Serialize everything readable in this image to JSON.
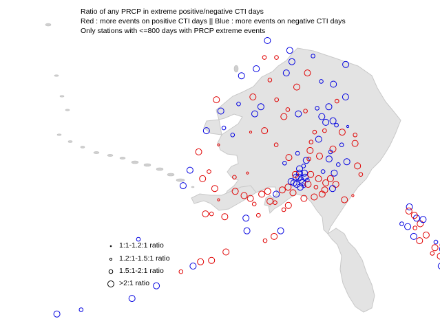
{
  "title": {
    "line1": "Ratio of any PRCP in extreme positive/negative CTI days",
    "line2": "Red : more events on positive CTI days || Blue : more events on negative CTI days",
    "line3": "Only stations with <=800 days with PRCP extreme events"
  },
  "colors": {
    "positive": "#e00000",
    "negative": "#0000e0",
    "land_fill": "#e3e3e3",
    "coast": "#c8c8c8"
  },
  "legend": {
    "items": [
      {
        "label": "1:1-1.2:1 ratio",
        "size_class": 1
      },
      {
        "label": "1.2:1-1.5:1 ratio",
        "size_class": 2
      },
      {
        "label": "1.5:1-2:1 ratio",
        "size_class": 3
      },
      {
        "label": ">2:1 ratio",
        "size_class": 4
      }
    ]
  },
  "stations": [
    {
      "lon": -141.0,
      "lat": 69.6,
      "color": "blue",
      "size_class": 4
    },
    {
      "lon": -147.3,
      "lat": 70.2,
      "color": "blue",
      "size_class": 3
    },
    {
      "lon": -156.8,
      "lat": 71.3,
      "color": "blue",
      "size_class": 4
    },
    {
      "lon": -152.0,
      "lat": 70.6,
      "color": "blue",
      "size_class": 4
    },
    {
      "lon": -154.6,
      "lat": 70.1,
      "color": "red",
      "size_class": 3
    },
    {
      "lon": -157.0,
      "lat": 70.1,
      "color": "red",
      "size_class": 3
    },
    {
      "lon": -158.3,
      "lat": 69.3,
      "color": "blue",
      "size_class": 4
    },
    {
      "lon": -160.9,
      "lat": 68.8,
      "color": "blue",
      "size_class": 4
    },
    {
      "lon": -151.5,
      "lat": 69.8,
      "color": "blue",
      "size_class": 4
    },
    {
      "lon": -148.5,
      "lat": 69.0,
      "color": "red",
      "size_class": 4
    },
    {
      "lon": -152.5,
      "lat": 69.0,
      "color": "blue",
      "size_class": 4
    },
    {
      "lon": -155.5,
      "lat": 68.5,
      "color": "red",
      "size_class": 3
    },
    {
      "lon": -150.5,
      "lat": 68.0,
      "color": "red",
      "size_class": 4
    },
    {
      "lon": -146.0,
      "lat": 68.4,
      "color": "blue",
      "size_class": 3
    },
    {
      "lon": -143.8,
      "lat": 68.2,
      "color": "blue",
      "size_class": 4
    },
    {
      "lon": -141.9,
      "lat": 67.3,
      "color": "blue",
      "size_class": 4
    },
    {
      "lon": -143.5,
      "lat": 67.0,
      "color": "red",
      "size_class": 3
    },
    {
      "lon": -145.0,
      "lat": 66.6,
      "color": "blue",
      "size_class": 4
    },
    {
      "lon": -147.0,
      "lat": 66.5,
      "color": "blue",
      "size_class": 3
    },
    {
      "lon": -149.0,
      "lat": 66.3,
      "color": "red",
      "size_class": 3
    },
    {
      "lon": -152.0,
      "lat": 66.4,
      "color": "red",
      "size_class": 3
    },
    {
      "lon": -154.0,
      "lat": 67.1,
      "color": "red",
      "size_class": 3
    },
    {
      "lon": -156.6,
      "lat": 66.6,
      "color": "blue",
      "size_class": 4
    },
    {
      "lon": -158.2,
      "lat": 67.3,
      "color": "red",
      "size_class": 4
    },
    {
      "lon": -160.5,
      "lat": 66.8,
      "color": "blue",
      "size_class": 3
    },
    {
      "lon": -163.3,
      "lat": 66.3,
      "color": "blue",
      "size_class": 4
    },
    {
      "lon": -164.5,
      "lat": 67.1,
      "color": "red",
      "size_class": 4
    },
    {
      "lon": -157.5,
      "lat": 66.1,
      "color": "blue",
      "size_class": 4
    },
    {
      "lon": -152.6,
      "lat": 65.9,
      "color": "red",
      "size_class": 4
    },
    {
      "lon": -150.2,
      "lat": 66.1,
      "color": "blue",
      "size_class": 4
    },
    {
      "lon": -146.3,
      "lat": 65.9,
      "color": "blue",
      "size_class": 4
    },
    {
      "lon": -145.7,
      "lat": 65.5,
      "color": "blue",
      "size_class": 4
    },
    {
      "lon": -144.5,
      "lat": 65.6,
      "color": "blue",
      "size_class": 4
    },
    {
      "lon": -144.0,
      "lat": 65.3,
      "color": "blue",
      "size_class": 3
    },
    {
      "lon": -142.2,
      "lat": 65.2,
      "color": "blue",
      "size_class": 2
    },
    {
      "lon": -143.2,
      "lat": 64.8,
      "color": "red",
      "size_class": 4
    },
    {
      "lon": -146.0,
      "lat": 64.9,
      "color": "red",
      "size_class": 3
    },
    {
      "lon": -147.6,
      "lat": 64.8,
      "color": "red",
      "size_class": 3
    },
    {
      "lon": -147.0,
      "lat": 64.3,
      "color": "blue",
      "size_class": 4
    },
    {
      "lon": -148.2,
      "lat": 64.1,
      "color": "red",
      "size_class": 3
    },
    {
      "lon": -143.5,
      "lat": 63.9,
      "color": "blue",
      "size_class": 3
    },
    {
      "lon": -141.4,
      "lat": 64.0,
      "color": "red",
      "size_class": 4
    },
    {
      "lon": -141.2,
      "lat": 64.6,
      "color": "red",
      "size_class": 3
    },
    {
      "lon": -144.9,
      "lat": 63.6,
      "color": "red",
      "size_class": 4
    },
    {
      "lon": -145.3,
      "lat": 63.4,
      "color": "blue",
      "size_class": 3
    },
    {
      "lon": -145.6,
      "lat": 62.9,
      "color": "blue",
      "size_class": 4
    },
    {
      "lon": -147.0,
      "lat": 63.1,
      "color": "red",
      "size_class": 4
    },
    {
      "lon": -148.4,
      "lat": 63.5,
      "color": "red",
      "size_class": 4
    },
    {
      "lon": -149.0,
      "lat": 62.8,
      "color": "blue",
      "size_class": 4
    },
    {
      "lon": -150.3,
      "lat": 63.3,
      "color": "blue",
      "size_class": 3
    },
    {
      "lon": -151.6,
      "lat": 63.0,
      "color": "red",
      "size_class": 4
    },
    {
      "lon": -152.2,
      "lat": 62.6,
      "color": "blue",
      "size_class": 3
    },
    {
      "lon": -153.6,
      "lat": 63.9,
      "color": "red",
      "size_class": 3
    },
    {
      "lon": -155.6,
      "lat": 64.9,
      "color": "red",
      "size_class": 4
    },
    {
      "lon": -157.8,
      "lat": 64.8,
      "color": "red",
      "size_class": 2
    },
    {
      "lon": -160.6,
      "lat": 64.6,
      "color": "blue",
      "size_class": 3
    },
    {
      "lon": -162.2,
      "lat": 65.1,
      "color": "blue",
      "size_class": 3
    },
    {
      "lon": -164.9,
      "lat": 64.9,
      "color": "blue",
      "size_class": 4
    },
    {
      "lon": -162.5,
      "lat": 63.9,
      "color": "red",
      "size_class": 2
    },
    {
      "lon": -165.3,
      "lat": 63.4,
      "color": "red",
      "size_class": 4
    },
    {
      "lon": -165.9,
      "lat": 62.1,
      "color": "blue",
      "size_class": 4
    },
    {
      "lon": -163.8,
      "lat": 61.5,
      "color": "red",
      "size_class": 4
    },
    {
      "lon": -163.1,
      "lat": 62.0,
      "color": "red",
      "size_class": 3
    },
    {
      "lon": -166.3,
      "lat": 61.0,
      "color": "blue",
      "size_class": 4
    },
    {
      "lon": -161.8,
      "lat": 60.8,
      "color": "red",
      "size_class": 4
    },
    {
      "lon": -159.3,
      "lat": 61.6,
      "color": "red",
      "size_class": 3
    },
    {
      "lon": -157.5,
      "lat": 61.9,
      "color": "red",
      "size_class": 2
    },
    {
      "lon": -158.9,
      "lat": 60.6,
      "color": "red",
      "size_class": 4
    },
    {
      "lon": -157.6,
      "lat": 60.3,
      "color": "red",
      "size_class": 4
    },
    {
      "lon": -156.7,
      "lat": 60.1,
      "color": "red",
      "size_class": 4
    },
    {
      "lon": -156.1,
      "lat": 59.7,
      "color": "red",
      "size_class": 3
    },
    {
      "lon": -155.2,
      "lat": 60.4,
      "color": "red",
      "size_class": 4
    },
    {
      "lon": -154.4,
      "lat": 60.6,
      "color": "red",
      "size_class": 4
    },
    {
      "lon": -154.0,
      "lat": 59.9,
      "color": "red",
      "size_class": 4
    },
    {
      "lon": -153.2,
      "lat": 60.4,
      "color": "blue",
      "size_class": 4
    },
    {
      "lon": -152.4,
      "lat": 60.7,
      "color": "red",
      "size_class": 4
    },
    {
      "lon": -151.6,
      "lat": 60.9,
      "color": "red",
      "size_class": 4
    },
    {
      "lon": -151.2,
      "lat": 61.3,
      "color": "blue",
      "size_class": 4
    },
    {
      "lon": -150.5,
      "lat": 61.6,
      "color": "blue",
      "size_class": 4
    },
    {
      "lon": -150.0,
      "lat": 61.9,
      "color": "blue",
      "size_class": 4
    },
    {
      "lon": -149.6,
      "lat": 61.2,
      "color": "blue",
      "size_class": 4
    },
    {
      "lon": -149.8,
      "lat": 61.4,
      "color": "blue",
      "size_class": 4
    },
    {
      "lon": -149.2,
      "lat": 61.6,
      "color": "blue",
      "size_class": 4
    },
    {
      "lon": -149.9,
      "lat": 60.9,
      "color": "blue",
      "size_class": 4
    },
    {
      "lon": -150.4,
      "lat": 61.1,
      "color": "blue",
      "size_class": 4
    },
    {
      "lon": -150.8,
      "lat": 61.2,
      "color": "blue",
      "size_class": 4
    },
    {
      "lon": -149.4,
      "lat": 61.0,
      "color": "blue",
      "size_class": 3
    },
    {
      "lon": -148.9,
      "lat": 61.4,
      "color": "blue",
      "size_class": 3
    },
    {
      "lon": -150.1,
      "lat": 61.6,
      "color": "blue",
      "size_class": 4
    },
    {
      "lon": -150.6,
      "lat": 61.8,
      "color": "red",
      "size_class": 4
    },
    {
      "lon": -149.3,
      "lat": 61.9,
      "color": "blue",
      "size_class": 4
    },
    {
      "lon": -150.0,
      "lat": 62.2,
      "color": "blue",
      "size_class": 4
    },
    {
      "lon": -149.4,
      "lat": 62.4,
      "color": "blue",
      "size_class": 3
    },
    {
      "lon": -148.4,
      "lat": 61.8,
      "color": "red",
      "size_class": 4
    },
    {
      "lon": -148.8,
      "lat": 61.1,
      "color": "red",
      "size_class": 4
    },
    {
      "lon": -147.3,
      "lat": 61.5,
      "color": "red",
      "size_class": 4
    },
    {
      "lon": -146.3,
      "lat": 61.2,
      "color": "red",
      "size_class": 4
    },
    {
      "lon": -145.6,
      "lat": 61.5,
      "color": "red",
      "size_class": 4
    },
    {
      "lon": -145.0,
      "lat": 61.9,
      "color": "blue",
      "size_class": 4
    },
    {
      "lon": -144.9,
      "lat": 61.1,
      "color": "red",
      "size_class": 4
    },
    {
      "lon": -145.4,
      "lat": 60.8,
      "color": "blue",
      "size_class": 4
    },
    {
      "lon": -146.5,
      "lat": 60.7,
      "color": "red",
      "size_class": 4
    },
    {
      "lon": -147.7,
      "lat": 60.9,
      "color": "red",
      "size_class": 3
    },
    {
      "lon": -146.9,
      "lat": 60.4,
      "color": "red",
      "size_class": 4
    },
    {
      "lon": -148.0,
      "lat": 60.2,
      "color": "red",
      "size_class": 4
    },
    {
      "lon": -149.4,
      "lat": 60.1,
      "color": "red",
      "size_class": 4
    },
    {
      "lon": -150.9,
      "lat": 60.5,
      "color": "red",
      "size_class": 4
    },
    {
      "lon": -151.5,
      "lat": 59.6,
      "color": "red",
      "size_class": 4
    },
    {
      "lon": -152.1,
      "lat": 59.3,
      "color": "red",
      "size_class": 3
    },
    {
      "lon": -153.3,
      "lat": 59.8,
      "color": "red",
      "size_class": 3
    },
    {
      "lon": -155.4,
      "lat": 58.9,
      "color": "red",
      "size_class": 3
    },
    {
      "lon": -152.4,
      "lat": 57.8,
      "color": "blue",
      "size_class": 4
    },
    {
      "lon": -153.2,
      "lat": 57.4,
      "color": "red",
      "size_class": 4
    },
    {
      "lon": -154.3,
      "lat": 57.1,
      "color": "red",
      "size_class": 3
    },
    {
      "lon": -143.9,
      "lat": 60.0,
      "color": "red",
      "size_class": 4
    },
    {
      "lon": -142.7,
      "lat": 60.3,
      "color": "red",
      "size_class": 2
    },
    {
      "lon": -141.2,
      "lat": 61.8,
      "color": "red",
      "size_class": 3
    },
    {
      "lon": -141.5,
      "lat": 62.4,
      "color": "red",
      "size_class": 4
    },
    {
      "lon": -143.0,
      "lat": 62.7,
      "color": "blue",
      "size_class": 4
    },
    {
      "lon": -144.3,
      "lat": 62.5,
      "color": "blue",
      "size_class": 3
    },
    {
      "lon": -146.6,
      "lat": 62.0,
      "color": "blue",
      "size_class": 3
    },
    {
      "lon": -148.6,
      "lat": 62.9,
      "color": "red",
      "size_class": 3
    },
    {
      "lon": -161.0,
      "lat": 60.0,
      "color": "red",
      "size_class": 2
    },
    {
      "lon": -162.4,
      "lat": 59.0,
      "color": "red",
      "size_class": 4
    },
    {
      "lon": -159.8,
      "lat": 58.8,
      "color": "red",
      "size_class": 4
    },
    {
      "lon": -157.0,
      "lat": 58.7,
      "color": "blue",
      "size_class": 4
    },
    {
      "lon": -156.7,
      "lat": 57.8,
      "color": "blue",
      "size_class": 4
    },
    {
      "lon": -159.0,
      "lat": 56.3,
      "color": "red",
      "size_class": 4
    },
    {
      "lon": -160.6,
      "lat": 55.7,
      "color": "red",
      "size_class": 4
    },
    {
      "lon": -161.9,
      "lat": 55.6,
      "color": "red",
      "size_class": 4
    },
    {
      "lon": -162.7,
      "lat": 55.3,
      "color": "blue",
      "size_class": 4
    },
    {
      "lon": -164.0,
      "lat": 54.9,
      "color": "red",
      "size_class": 3
    },
    {
      "lon": -166.5,
      "lat": 53.9,
      "color": "blue",
      "size_class": 4
    },
    {
      "lon": -168.9,
      "lat": 53.0,
      "color": "blue",
      "size_class": 4
    },
    {
      "lon": -174.2,
      "lat": 52.2,
      "color": "blue",
      "size_class": 3
    },
    {
      "lon": -176.7,
      "lat": 51.9,
      "color": "blue",
      "size_class": 4
    },
    {
      "lon": -170.2,
      "lat": 57.2,
      "color": "blue",
      "size_class": 3
    },
    {
      "lon": -161.6,
      "lat": 59.0,
      "color": "red",
      "size_class": 3
    },
    {
      "lon": -135.3,
      "lat": 59.5,
      "color": "blue",
      "size_class": 4
    },
    {
      "lon": -135.5,
      "lat": 59.2,
      "color": "red",
      "size_class": 4
    },
    {
      "lon": -134.7,
      "lat": 58.7,
      "color": "blue",
      "size_class": 4
    },
    {
      "lon": -134.4,
      "lat": 58.3,
      "color": "red",
      "size_class": 4
    },
    {
      "lon": -135.2,
      "lat": 58.0,
      "color": "red",
      "size_class": 3
    },
    {
      "lon": -136.1,
      "lat": 58.1,
      "color": "blue",
      "size_class": 4
    },
    {
      "lon": -135.6,
      "lat": 57.4,
      "color": "blue",
      "size_class": 4
    },
    {
      "lon": -135.0,
      "lat": 57.1,
      "color": "red",
      "size_class": 4
    },
    {
      "lon": -134.0,
      "lat": 57.5,
      "color": "red",
      "size_class": 4
    },
    {
      "lon": -133.0,
      "lat": 57.0,
      "color": "blue",
      "size_class": 3
    },
    {
      "lon": -133.3,
      "lat": 56.6,
      "color": "red",
      "size_class": 4
    },
    {
      "lon": -132.4,
      "lat": 56.5,
      "color": "blue",
      "size_class": 4
    },
    {
      "lon": -133.8,
      "lat": 56.2,
      "color": "red",
      "size_class": 3
    },
    {
      "lon": -132.9,
      "lat": 56.0,
      "color": "red",
      "size_class": 4
    },
    {
      "lon": -131.6,
      "lat": 55.4,
      "color": "blue",
      "size_class": 4
    },
    {
      "lon": -132.2,
      "lat": 55.5,
      "color": "red",
      "size_class": 4
    },
    {
      "lon": -131.2,
      "lat": 55.1,
      "color": "blue",
      "size_class": 4
    },
    {
      "lon": -133.1,
      "lat": 55.3,
      "color": "blue",
      "size_class": 4
    },
    {
      "lon": -132.6,
      "lat": 55.9,
      "color": "red",
      "size_class": 3
    },
    {
      "lon": -134.9,
      "lat": 58.9,
      "color": "red",
      "size_class": 4
    },
    {
      "lon": -133.9,
      "lat": 58.6,
      "color": "blue",
      "size_class": 4
    },
    {
      "lon": -136.8,
      "lat": 58.3,
      "color": "blue",
      "size_class": 3
    },
    {
      "lon": -132.2,
      "lat": 56.8,
      "color": "red",
      "size_class": 4
    },
    {
      "lon": -130.9,
      "lat": 54.6,
      "color": "blue",
      "size_class": 4
    }
  ]
}
